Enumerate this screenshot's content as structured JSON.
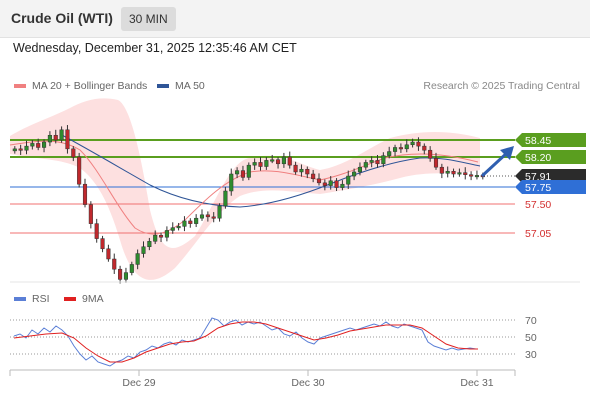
{
  "header": {
    "title": "Crude Oil (WTI)",
    "timeframe": "30 MIN"
  },
  "datetime": "Wednesday, December 31, 2025 12:35:46 AM CET",
  "legend": {
    "ma20": {
      "label": "MA 20 + Bollinger Bands",
      "color": "#f08080"
    },
    "ma50": {
      "label": "MA 50",
      "color": "#2f5597"
    }
  },
  "research": "Research © 2025 Trading Central",
  "rsi_legend": {
    "rsi": {
      "label": "RSI",
      "color": "#5b7fd6"
    },
    "ma9": {
      "label": "9MA",
      "color": "#e02020"
    }
  },
  "chart_data": [
    {
      "type": "candlestick",
      "x_labels": [
        "Dec 29",
        "Dec 30",
        "Dec 31"
      ],
      "levels": [
        {
          "value": "58.45",
          "kind": "resistance"
        },
        {
          "value": "58.20",
          "kind": "resistance"
        },
        {
          "value": "57.91",
          "kind": "last"
        },
        {
          "value": "57.75",
          "kind": "pivot"
        },
        {
          "value": "57.50",
          "kind": "support"
        },
        {
          "value": "57.05",
          "kind": "support"
        }
      ],
      "closes": [
        58.32,
        58.3,
        58.36,
        58.4,
        58.34,
        58.42,
        58.52,
        58.45,
        58.6,
        58.32,
        58.2,
        57.8,
        57.5,
        57.22,
        57.0,
        56.85,
        56.7,
        56.55,
        56.4,
        56.5,
        56.62,
        56.78,
        56.88,
        56.96,
        57.05,
        57.02,
        57.12,
        57.16,
        57.18,
        57.26,
        57.22,
        57.3,
        57.35,
        57.32,
        57.3,
        57.48,
        57.7,
        57.95,
        58.0,
        57.9,
        58.08,
        58.12,
        58.06,
        58.15,
        58.16,
        58.1,
        58.2,
        58.08,
        57.98,
        58.02,
        57.95,
        57.88,
        57.82,
        57.78,
        57.85,
        57.75,
        57.8,
        57.92,
        57.98,
        58.05,
        58.12,
        58.15,
        58.1,
        58.22,
        58.28,
        58.34,
        58.32,
        58.38,
        58.42,
        58.36,
        58.3,
        58.18,
        58.05,
        57.96,
        57.99,
        57.95,
        57.97,
        57.94,
        57.92,
        57.93,
        57.91
      ],
      "ylim": [
        56.5,
        58.7
      ]
    },
    {
      "type": "line",
      "title": "RSI",
      "y_ticks": [
        "70",
        "50",
        "30"
      ],
      "ylim": [
        20,
        80
      ]
    }
  ]
}
